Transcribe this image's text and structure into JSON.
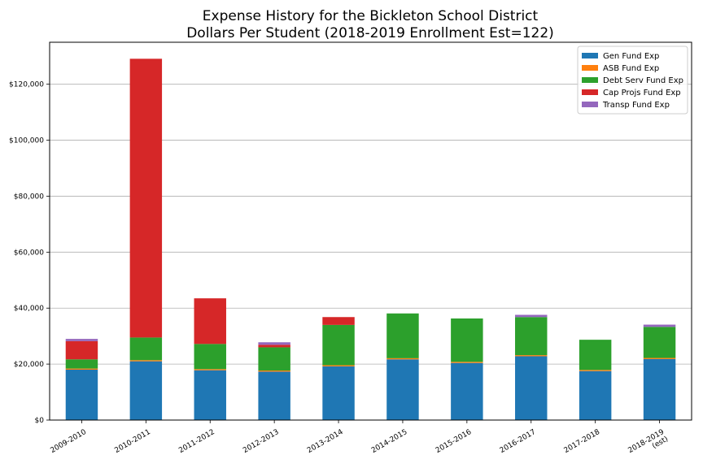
{
  "chart_data": {
    "type": "bar",
    "stacked": true,
    "title": "Expense History for the Bickleton School District",
    "subtitle": "Dollars Per Student (2018-2019 Enrollment Est=122)",
    "xlabel": "",
    "ylabel": "",
    "ylim": [
      0,
      135000
    ],
    "yticks": [
      0,
      20000,
      40000,
      60000,
      80000,
      100000,
      120000
    ],
    "ytick_labels": [
      "$0",
      "$20,000",
      "$40,000",
      "$60,000",
      "$80,000",
      "$100,000",
      "$120,000"
    ],
    "grid": "horizontal",
    "legend_position": "top-right",
    "categories": [
      "2009-2010",
      "2010-2011",
      "2011-2012",
      "2012-2013",
      "2013-2014",
      "2014-2015",
      "2015-2016",
      "2016-2017",
      "2017-2018",
      "2018-2019\n(est)"
    ],
    "series": [
      {
        "name": "Gen Fund Exp",
        "color": "#1f77b4",
        "values": [
          18000,
          21000,
          17800,
          17300,
          19200,
          21700,
          20400,
          22800,
          17500,
          21800
        ]
      },
      {
        "name": "ASB Fund Exp",
        "color": "#ff7f0e",
        "values": [
          400,
          400,
          400,
          400,
          400,
          400,
          400,
          400,
          400,
          400
        ]
      },
      {
        "name": "Debt Serv Fund Exp",
        "color": "#2ca02c",
        "values": [
          3300,
          8100,
          9000,
          8300,
          14400,
          16000,
          15500,
          13600,
          10800,
          11100
        ]
      },
      {
        "name": "Cap Projs Fund Exp",
        "color": "#d62728",
        "values": [
          6500,
          99600,
          16300,
          900,
          2800,
          0,
          0,
          0,
          0,
          0
        ]
      },
      {
        "name": "Transp Fund Exp",
        "color": "#9467bd",
        "values": [
          800,
          0,
          0,
          900,
          0,
          0,
          0,
          800,
          0,
          800
        ]
      }
    ]
  }
}
